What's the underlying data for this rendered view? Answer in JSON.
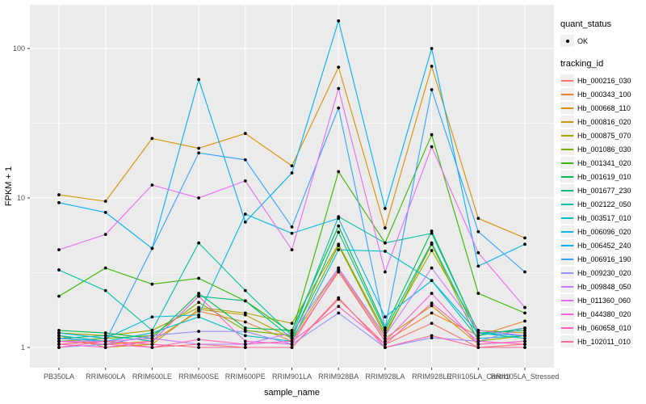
{
  "axes": {
    "x_title": "sample_name",
    "y_title": "FPKM + 1",
    "y_ticks": [
      "1",
      "10",
      "100"
    ],
    "y_tick_values": [
      1,
      10,
      100
    ]
  },
  "legend": {
    "quant_status_title": "quant_status",
    "quant_status_entries": [
      {
        "label": "OK",
        "marker": "point"
      }
    ],
    "tracking_id_title": "tracking_id"
  },
  "colors": {
    "panel_background": "#ebebeb",
    "grid_major": "#ffffff",
    "grid_minor": "#f7f7f7",
    "point_color": "#000000",
    "tick_label_color": "#4d4d4d",
    "axis_title_color": "#000000"
  },
  "chart_data": {
    "type": "line",
    "title": "",
    "xlabel": "sample_name",
    "ylabel": "FPKM + 1",
    "yscale": "log10",
    "ylim": [
      1,
      200
    ],
    "grid": true,
    "legend_position": "right",
    "point_marker": "black dot (quant_status = OK)",
    "categories": [
      "PB350LA",
      "RRIM600LA",
      "RRIM600LE",
      "RRIM600SE",
      "RRIM600PE",
      "RRIM901LA",
      "RRIM928BA",
      "RRIM928LA",
      "RRIM928LE",
      "RRII105LA_Control",
      "RRII105LA_Stressed"
    ],
    "series": [
      {
        "name": "Hb_000216_030",
        "color": "#F8766D",
        "values": [
          1.05,
          1.1,
          1.0,
          1.05,
          1.0,
          1.0,
          2.1,
          1.05,
          1.45,
          1.0,
          1.05
        ]
      },
      {
        "name": "Hb_000343_100",
        "color": "#EA8331",
        "values": [
          1.1,
          1.05,
          1.1,
          1.75,
          1.48,
          1.1,
          3.2,
          1.1,
          1.7,
          1.2,
          1.5
        ]
      },
      {
        "name": "Hb_000668_110",
        "color": "#D89000",
        "values": [
          10.5,
          9.5,
          25,
          21.5,
          27,
          16.4,
          75,
          6.3,
          76,
          7.3,
          5.4
        ]
      },
      {
        "name": "Hb_000816_020",
        "color": "#C09B00",
        "values": [
          1.2,
          1.0,
          1.05,
          1.8,
          1.65,
          1.15,
          3.4,
          1.15,
          1.9,
          1.05,
          1.1
        ]
      },
      {
        "name": "Hb_000875_070",
        "color": "#A3A500",
        "values": [
          1.25,
          1.2,
          1.3,
          1.85,
          1.7,
          1.45,
          4.9,
          1.25,
          4.45,
          1.3,
          1.25
        ]
      },
      {
        "name": "Hb_001086_030",
        "color": "#7CAE00",
        "values": [
          1.1,
          1.15,
          1.2,
          2.0,
          1.3,
          1.2,
          4.8,
          1.2,
          4.9,
          1.1,
          1.2
        ]
      },
      {
        "name": "Hb_001341_020",
        "color": "#39B600",
        "values": [
          2.2,
          3.4,
          2.65,
          2.9,
          2.05,
          1.25,
          15,
          5.0,
          26.5,
          2.3,
          1.7
        ]
      },
      {
        "name": "Hb_001619_010",
        "color": "#00BB4E",
        "values": [
          1.3,
          1.25,
          1.15,
          2.3,
          1.35,
          1.3,
          6.5,
          1.35,
          6.0,
          1.25,
          1.3
        ]
      },
      {
        "name": "Hb_001677_230",
        "color": "#00BF7D",
        "values": [
          1.15,
          1.2,
          1.1,
          2.2,
          2.05,
          1.15,
          5.9,
          1.3,
          5.0,
          1.2,
          1.35
        ]
      },
      {
        "name": "Hb_002122_050",
        "color": "#00C1A3",
        "values": [
          3.3,
          2.4,
          1.3,
          5.0,
          2.4,
          1.2,
          7.5,
          5.0,
          5.8,
          1.25,
          1.15
        ]
      },
      {
        "name": "Hb_003517_010",
        "color": "#00BFC4",
        "values": [
          1.2,
          1.1,
          1.25,
          1.6,
          1.2,
          1.1,
          4.5,
          4.4,
          2.8,
          1.15,
          1.2
        ]
      },
      {
        "name": "Hb_006096_020",
        "color": "#00BAE0",
        "values": [
          1.25,
          1.15,
          1.6,
          1.65,
          7.8,
          5.8,
          7.3,
          1.6,
          2.8,
          1.25,
          1.2
        ]
      },
      {
        "name": "Hb_006452_240",
        "color": "#00B0F6",
        "values": [
          9.3,
          8.0,
          4.6,
          62,
          6.9,
          14.7,
          153,
          8.5,
          100,
          3.5,
          4.9
        ]
      },
      {
        "name": "Hb_006916_190",
        "color": "#35A2FF",
        "values": [
          1.15,
          1.1,
          4.6,
          20,
          18,
          6.4,
          40,
          1.35,
          53,
          5.95,
          3.2
        ]
      },
      {
        "name": "Hb_009230_020",
        "color": "#9590FF",
        "values": [
          1.0,
          1.05,
          1.2,
          1.28,
          1.28,
          1.05,
          1.7,
          1.0,
          1.16,
          1.1,
          1.35
        ]
      },
      {
        "name": "Hb_009848_050",
        "color": "#C77CFF",
        "values": [
          1.1,
          1.1,
          1.15,
          1.05,
          1.05,
          1.25,
          3.4,
          1.2,
          3.4,
          1.3,
          1.2
        ]
      },
      {
        "name": "Hb_011360_060",
        "color": "#E76BF3",
        "values": [
          4.5,
          5.7,
          12.2,
          10,
          13,
          4.5,
          54,
          3.2,
          22,
          4.3,
          1.85
        ]
      },
      {
        "name": "Hb_044380_020",
        "color": "#FA62DB",
        "values": [
          1.05,
          1.0,
          1.1,
          2.2,
          1.1,
          1.05,
          3.3,
          1.1,
          2.3,
          1.05,
          1.1
        ]
      },
      {
        "name": "Hb_060658_010",
        "color": "#FF62BC",
        "values": [
          1.1,
          1.05,
          1.0,
          1.13,
          1.05,
          1.1,
          1.88,
          1.05,
          1.98,
          1.1,
          1.05
        ]
      },
      {
        "name": "Hb_102011_010",
        "color": "#FF6A98",
        "values": [
          1.0,
          1.1,
          1.05,
          1.0,
          1.0,
          1.0,
          2.15,
          1.0,
          1.2,
          1.0,
          1.0
        ]
      }
    ]
  }
}
